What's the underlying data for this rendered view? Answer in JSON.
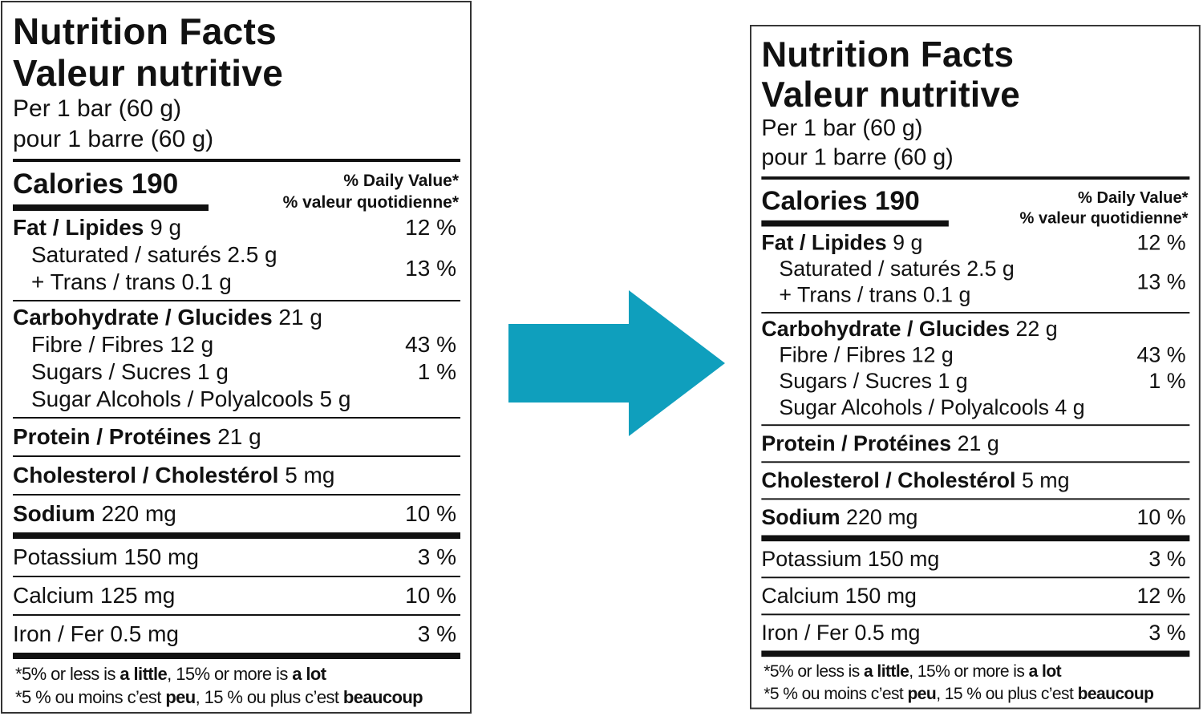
{
  "arrow_color": "#0f9fbd",
  "labels": [
    {
      "title1": "Nutrition Facts",
      "title2": "Valeur nutritive",
      "per1": "Per 1 bar (60 g)",
      "per2": "pour 1 barre (60 g)",
      "calories": "Calories 190",
      "dv1": "% Daily Value*",
      "dv2": "% valeur quotidienne*",
      "fat": {
        "name": "Fat / Lipides",
        "amount": "9 g",
        "dv": "12 %"
      },
      "saturated": {
        "name": "Saturated / saturés 2.5 g"
      },
      "trans": {
        "name": "+ Trans / trans 0.1 g"
      },
      "sat_trans_dv": "13 %",
      "carb": {
        "name": "Carbohydrate / Glucides",
        "amount": "21 g"
      },
      "fibre": {
        "name": "Fibre / Fibres 12 g",
        "dv": "43 %"
      },
      "sugars": {
        "name": "Sugars / Sucres 1 g",
        "dv": "1 %"
      },
      "alcohols": {
        "name": "Sugar Alcohols / Polyalcools 5 g"
      },
      "protein": {
        "name": "Protein / Protéines",
        "amount": "21 g"
      },
      "cholesterol": {
        "name": "Cholesterol / Cholestérol",
        "amount": "5 mg"
      },
      "sodium": {
        "name": "Sodium",
        "amount": "220 mg",
        "dv": "10 %"
      },
      "potassium": {
        "name": "Potassium 150 mg",
        "dv": "3 %"
      },
      "calcium": {
        "name": "Calcium 125 mg",
        "dv": "10 %"
      },
      "iron": {
        "name": "Iron / Fer 0.5 mg",
        "dv": "3 %"
      },
      "foot1": [
        "*5% or less is ",
        "a little",
        ", 15% or more is ",
        "a lot"
      ],
      "foot2": [
        "*5 % ou moins c’est ",
        "peu",
        ", 15 % ou plus c’est ",
        "beaucoup"
      ]
    },
    {
      "title1": "Nutrition Facts",
      "title2": "Valeur nutritive",
      "per1": "Per 1 bar (60 g)",
      "per2": "pour 1 barre (60 g)",
      "calories": "Calories 190",
      "dv1": "% Daily Value*",
      "dv2": "% valeur quotidienne*",
      "fat": {
        "name": "Fat / Lipides",
        "amount": "9 g",
        "dv": "12 %"
      },
      "saturated": {
        "name": "Saturated / saturés 2.5 g"
      },
      "trans": {
        "name": "+ Trans / trans 0.1 g"
      },
      "sat_trans_dv": "13 %",
      "carb": {
        "name": "Carbohydrate / Glucides",
        "amount": "22 g"
      },
      "fibre": {
        "name": "Fibre / Fibres 12 g",
        "dv": "43 %"
      },
      "sugars": {
        "name": "Sugars / Sucres 1 g",
        "dv": "1 %"
      },
      "alcohols": {
        "name": "Sugar Alcohols / Polyalcools 4 g"
      },
      "protein": {
        "name": "Protein / Protéines",
        "amount": "21 g"
      },
      "cholesterol": {
        "name": "Cholesterol / Cholestérol",
        "amount": "5 mg"
      },
      "sodium": {
        "name": "Sodium",
        "amount": "220 mg",
        "dv": "10 %"
      },
      "potassium": {
        "name": "Potassium 150 mg",
        "dv": "3 %"
      },
      "calcium": {
        "name": "Calcium 150 mg",
        "dv": "12 %"
      },
      "iron": {
        "name": "Iron / Fer 0.5 mg",
        "dv": "3 %"
      },
      "foot1": [
        "*5% or less is ",
        "a little",
        ", 15% or more is ",
        "a lot"
      ],
      "foot2": [
        "*5 % ou moins c’est ",
        "peu",
        ", 15 % ou plus c’est ",
        "beaucoup"
      ]
    }
  ]
}
